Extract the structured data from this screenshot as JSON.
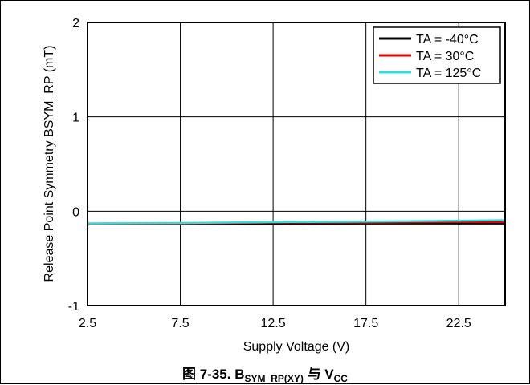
{
  "figure": {
    "caption_prefix": "图 7-35. B",
    "caption_sub1": "SYM_RP(XY)",
    "caption_mid": " 与 V",
    "caption_sub2": "CC"
  },
  "chart_data": {
    "type": "line",
    "xlabel": "Supply Voltage (V)",
    "ylabel": "Release Point Symmetry BSYM_RP (mT)",
    "xlim": [
      2.5,
      25
    ],
    "ylim": [
      -1,
      2
    ],
    "xticks": [
      2.5,
      7.5,
      12.5,
      17.5,
      22.5
    ],
    "xtick_labels": [
      "2.5",
      "7.5",
      "12.5",
      "17.5",
      "22.5"
    ],
    "yticks": [
      -1,
      0,
      1,
      2
    ],
    "ytick_labels": [
      "-1",
      "0",
      "1",
      "2"
    ],
    "grid": true,
    "legend_position": "top-right",
    "series": [
      {
        "name": "TA = -40°C",
        "color": "#000000",
        "x": [
          2.5,
          7.5,
          12.5,
          17.5,
          22.5,
          25
        ],
        "y": [
          -0.14,
          -0.14,
          -0.135,
          -0.13,
          -0.13,
          -0.13
        ]
      },
      {
        "name": "TA = 30°C",
        "color": "#e00000",
        "x": [
          2.5,
          7.5,
          12.5,
          17.5,
          22.5,
          25
        ],
        "y": [
          -0.13,
          -0.13,
          -0.12,
          -0.12,
          -0.115,
          -0.115
        ]
      },
      {
        "name": "TA = 125°C",
        "color": "#33dddd",
        "x": [
          2.5,
          7.5,
          12.5,
          17.5,
          22.5,
          25
        ],
        "y": [
          -0.13,
          -0.125,
          -0.115,
          -0.11,
          -0.1,
          -0.095
        ]
      }
    ]
  }
}
